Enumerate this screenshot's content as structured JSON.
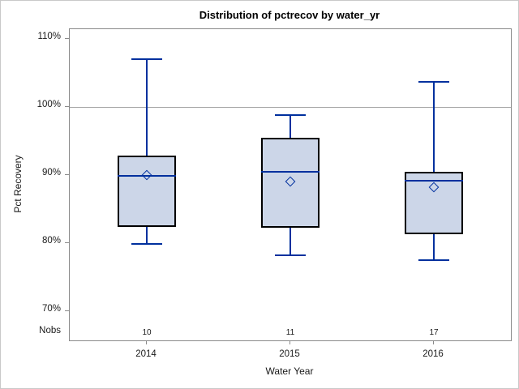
{
  "figure": {
    "title": "Distribution of pctrecov by water_yr"
  },
  "y_axis": {
    "label": "Pct Recovery",
    "tick_labels": [
      "110%",
      "100%",
      "90%",
      "80%",
      "70%"
    ]
  },
  "x_axis": {
    "label": "Water Year",
    "categories": [
      "2014",
      "2015",
      "2016"
    ]
  },
  "nobs": {
    "label": "Nobs",
    "values": [
      "10",
      "11",
      "17"
    ]
  },
  "colors": {
    "line_blue": "#00309e",
    "box_fill": "#ccd6e8",
    "box_border": "#000000",
    "reference_line": "#a8a8a8",
    "plot_border": "#8a8a8a",
    "outer_border": "#c9c9c9",
    "text": "#1a1a1a"
  },
  "chart_data": {
    "type": "boxplot",
    "title": "Distribution of pctrecov by water_yr",
    "xlabel": "Water Year",
    "ylabel": "Pct Recovery",
    "categories": [
      "2014",
      "2015",
      "2016"
    ],
    "nobs": [
      10,
      11,
      17
    ],
    "series": [
      {
        "name": "2014",
        "whisker_low": 79.8,
        "q1": 82.4,
        "median": 89.9,
        "mean": 90.0,
        "q3": 92.8,
        "whisker_high": 107.1
      },
      {
        "name": "2015",
        "whisker_low": 78.1,
        "q1": 82.3,
        "median": 90.4,
        "mean": 89.0,
        "q3": 95.4,
        "whisker_high": 98.9
      },
      {
        "name": "2016",
        "whisker_low": 77.4,
        "q1": 81.3,
        "median": 89.2,
        "mean": 88.2,
        "q3": 90.4,
        "whisker_high": 103.8
      }
    ],
    "ylim": [
      65.7,
      111.4
    ],
    "yticks": [
      110,
      100,
      90,
      80,
      70
    ],
    "ytick_format": "percent",
    "reference_line": 100,
    "grid": false,
    "legend": false
  }
}
